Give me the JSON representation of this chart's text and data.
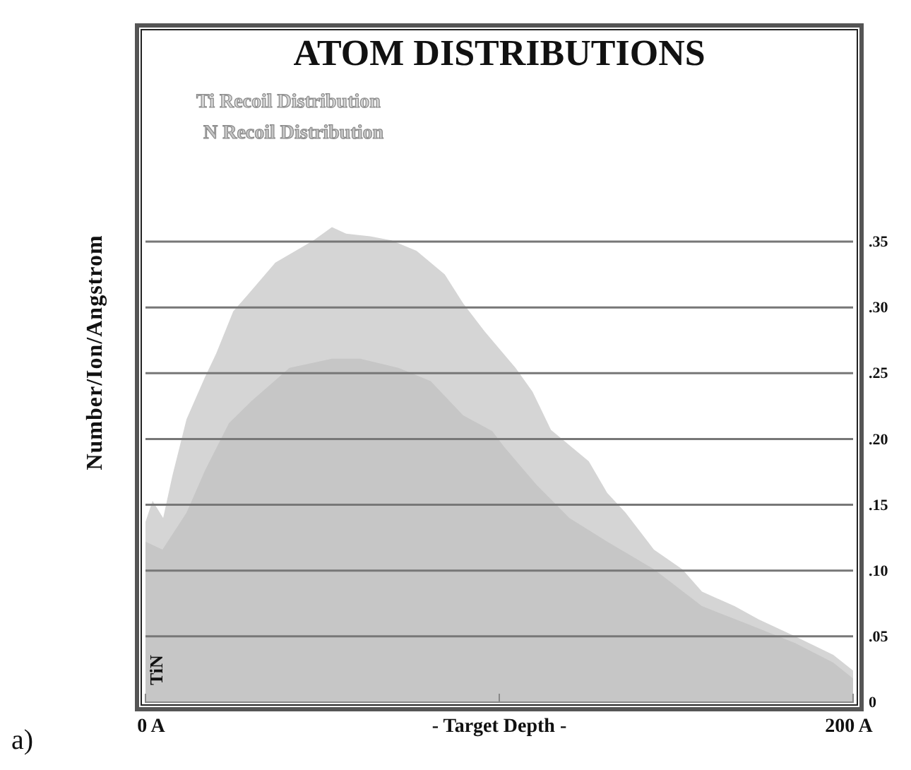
{
  "chart_data": {
    "type": "area",
    "title": "ATOM DISTRIBUTIONS",
    "xlabel": "- Target Depth -",
    "ylabel": "Number/Ion/Angstrom",
    "xlim": [
      0,
      200
    ],
    "xticks": [
      {
        "value": 0,
        "label": "0 A"
      },
      {
        "value": 100,
        "label": null
      },
      {
        "value": 200,
        "label": "200 A"
      }
    ],
    "ylim": [
      0,
      0.51
    ],
    "yticks": [
      0,
      {
        "value": 0.05,
        "label": ".05"
      },
      {
        "value": 0.1,
        "label": ".10"
      },
      {
        "value": 0.15,
        "label": ".15"
      },
      {
        "value": 0.2,
        "label": ".20"
      },
      {
        "value": 0.25,
        "label": ".25"
      },
      {
        "value": 0.3,
        "label": ".30"
      },
      {
        "value": 0.35,
        "label": ".35"
      }
    ],
    "grid": "y",
    "legend": "top left",
    "series": [
      {
        "name": "Ti Recoil Distribution",
        "color": "#d5d5d5",
        "x": [
          0,
          2,
          5,
          7.6,
          11.6,
          16.8,
          20,
          24.8,
          28.7,
          36.7,
          47.5,
          52.7,
          56.7,
          63.5,
          69.5,
          76.6,
          84.6,
          89.8,
          95.8,
          104.6,
          109.4,
          114.6,
          125.3,
          130.5,
          135.7,
          143.7,
          151.7,
          157.3,
          166.5,
          173.3,
          183.6,
          194.4,
          200
        ],
        "values": [
          0.137,
          0.153,
          0.14,
          0.172,
          0.215,
          0.247,
          0.265,
          0.297,
          0.309,
          0.334,
          0.351,
          0.361,
          0.356,
          0.354,
          0.351,
          0.343,
          0.325,
          0.303,
          0.282,
          0.254,
          0.236,
          0.207,
          0.183,
          0.159,
          0.144,
          0.116,
          0.101,
          0.084,
          0.073,
          0.063,
          0.05,
          0.036,
          0.024
        ]
      },
      {
        "name": "N Recoil Distribution",
        "color": "#c6c6c6",
        "x": [
          0,
          4.8,
          11.6,
          16.8,
          23.6,
          30,
          40.7,
          52.7,
          60.7,
          71.5,
          80.6,
          89.8,
          98,
          101.4,
          110.6,
          119.8,
          130.5,
          143.7,
          157.3,
          170.5,
          183.6,
          194.4,
          200
        ],
        "values": [
          0.122,
          0.116,
          0.144,
          0.176,
          0.212,
          0.229,
          0.254,
          0.261,
          0.261,
          0.254,
          0.244,
          0.218,
          0.206,
          0.194,
          0.165,
          0.14,
          0.122,
          0.101,
          0.073,
          0.059,
          0.045,
          0.03,
          0.018
        ]
      }
    ],
    "annotations": [
      "TiN",
      "a)"
    ]
  }
}
